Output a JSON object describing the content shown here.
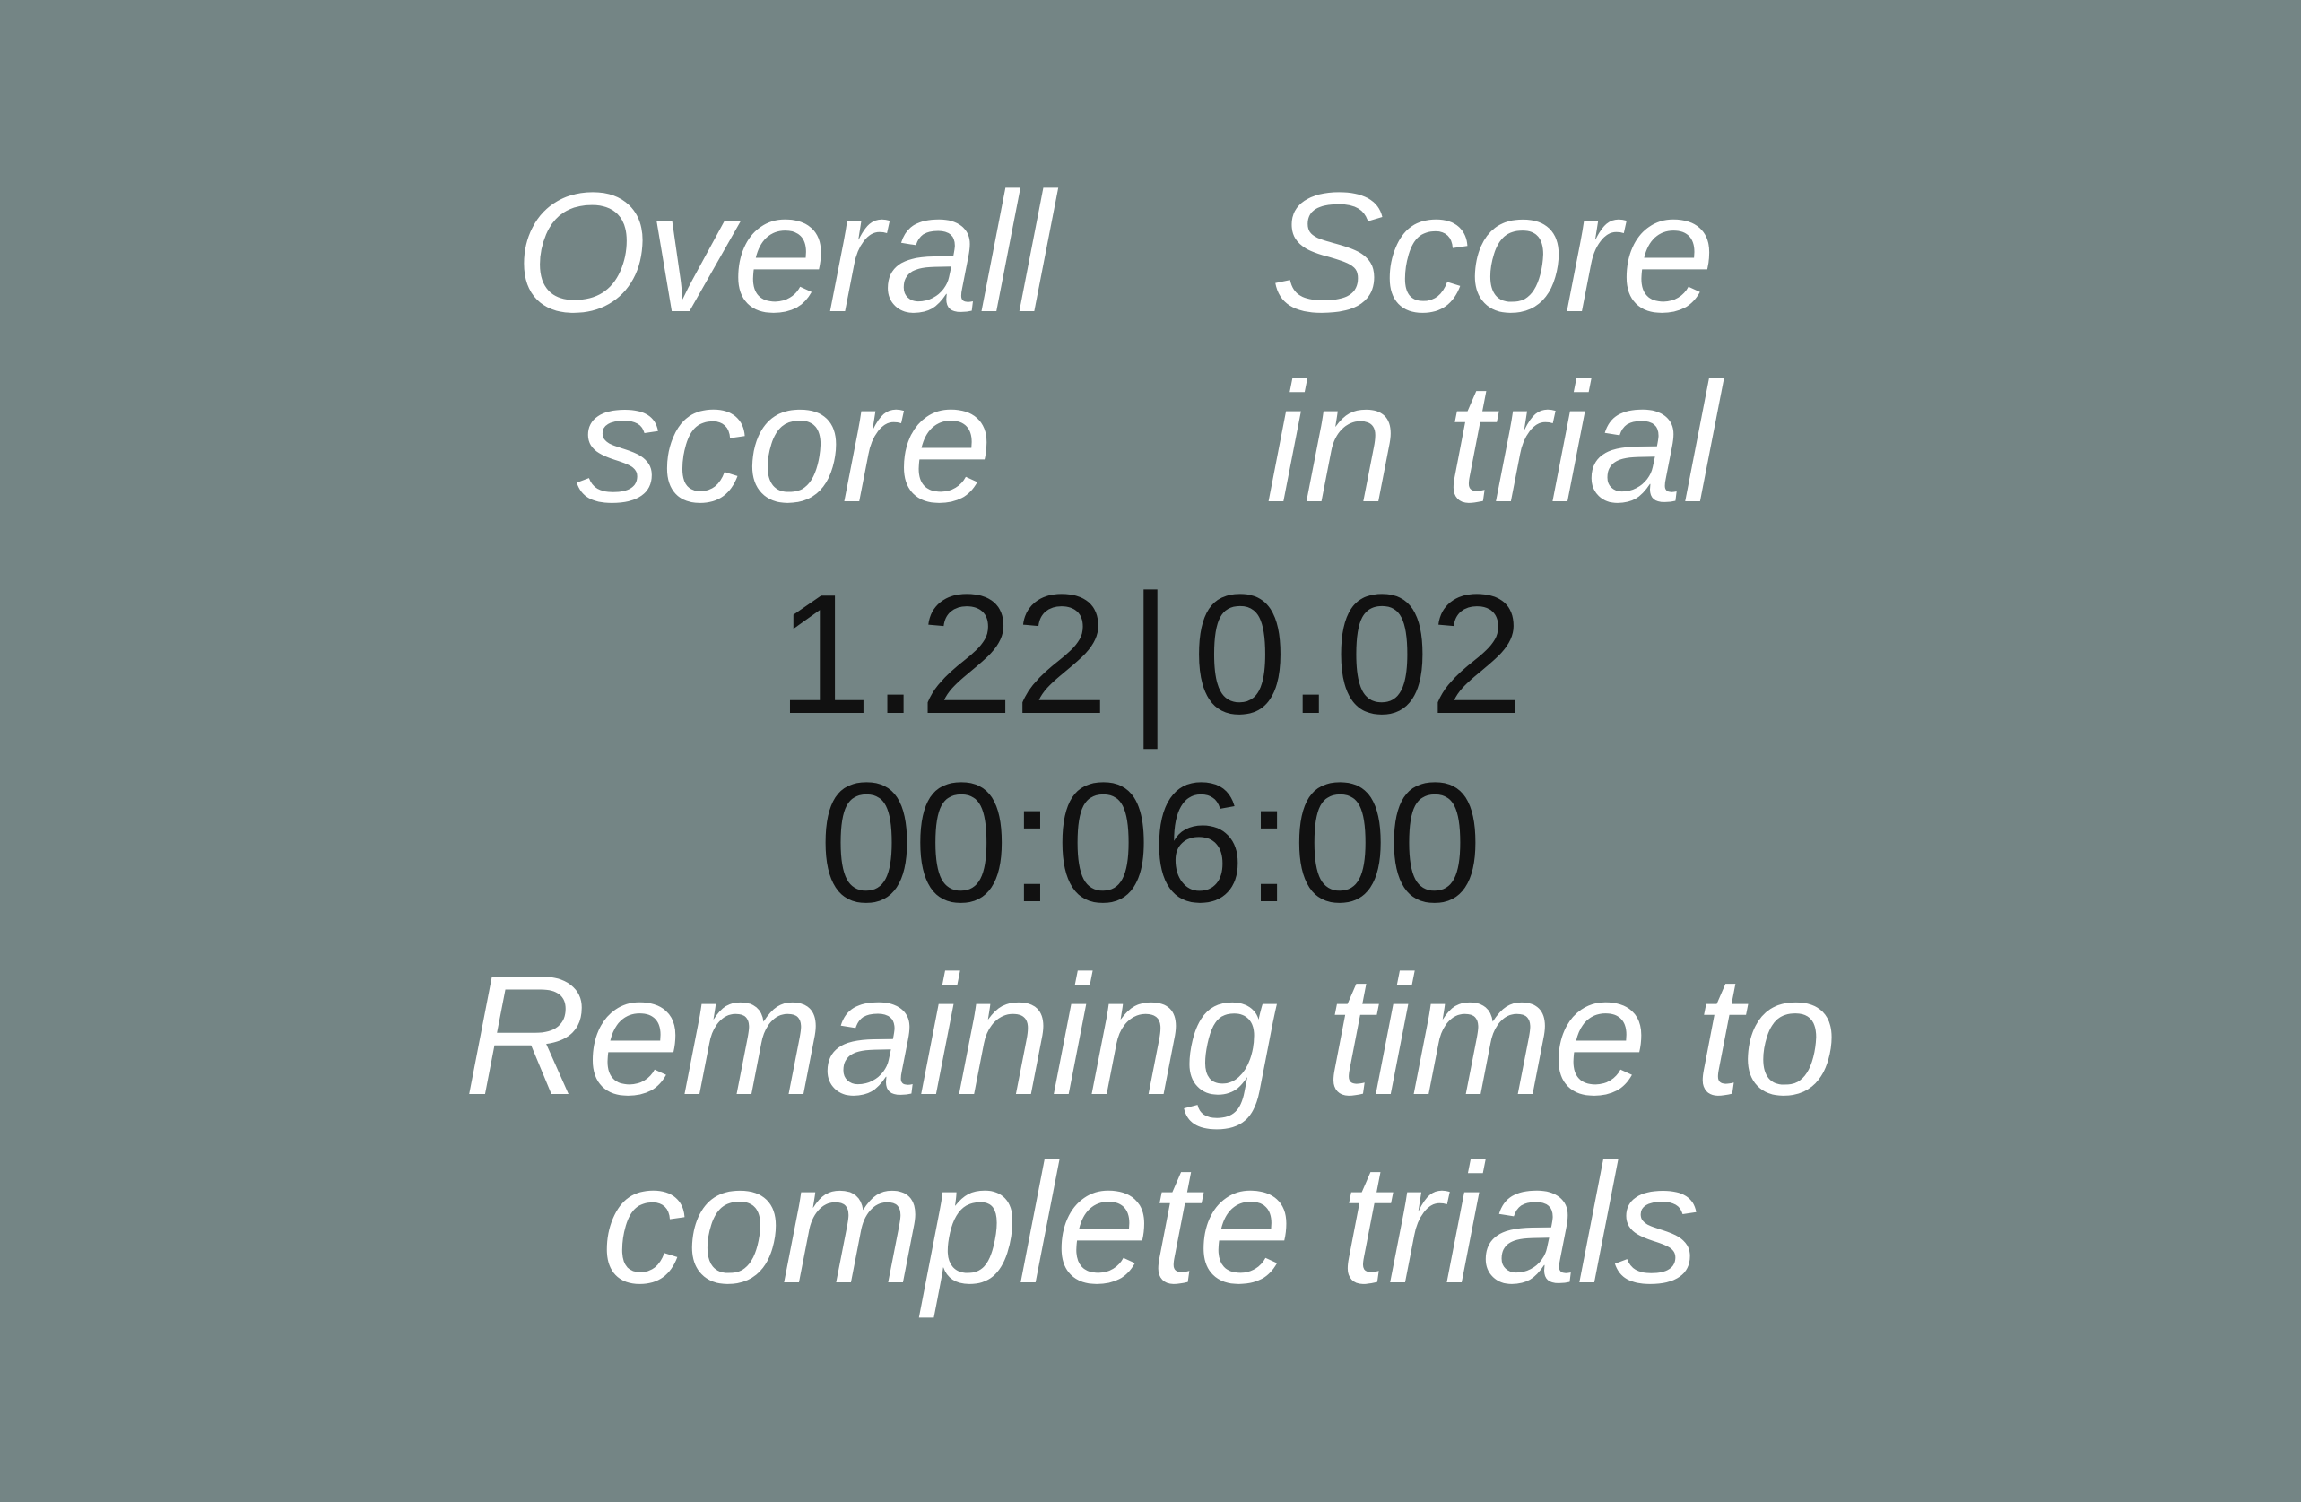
{
  "labels": {
    "overall_line1": "Overall",
    "overall_line2": "score",
    "trial_line1": "Score",
    "trial_line2": "in trial"
  },
  "scores": {
    "overall": "1.22",
    "separator": "|",
    "trial": "0.02"
  },
  "timer": {
    "value": "00:06:00",
    "caption_line1": "Remaining time to",
    "caption_line2": "complete trials"
  },
  "colors": {
    "background": "#748585",
    "label_text": "#ffffff",
    "value_text": "#111111"
  }
}
